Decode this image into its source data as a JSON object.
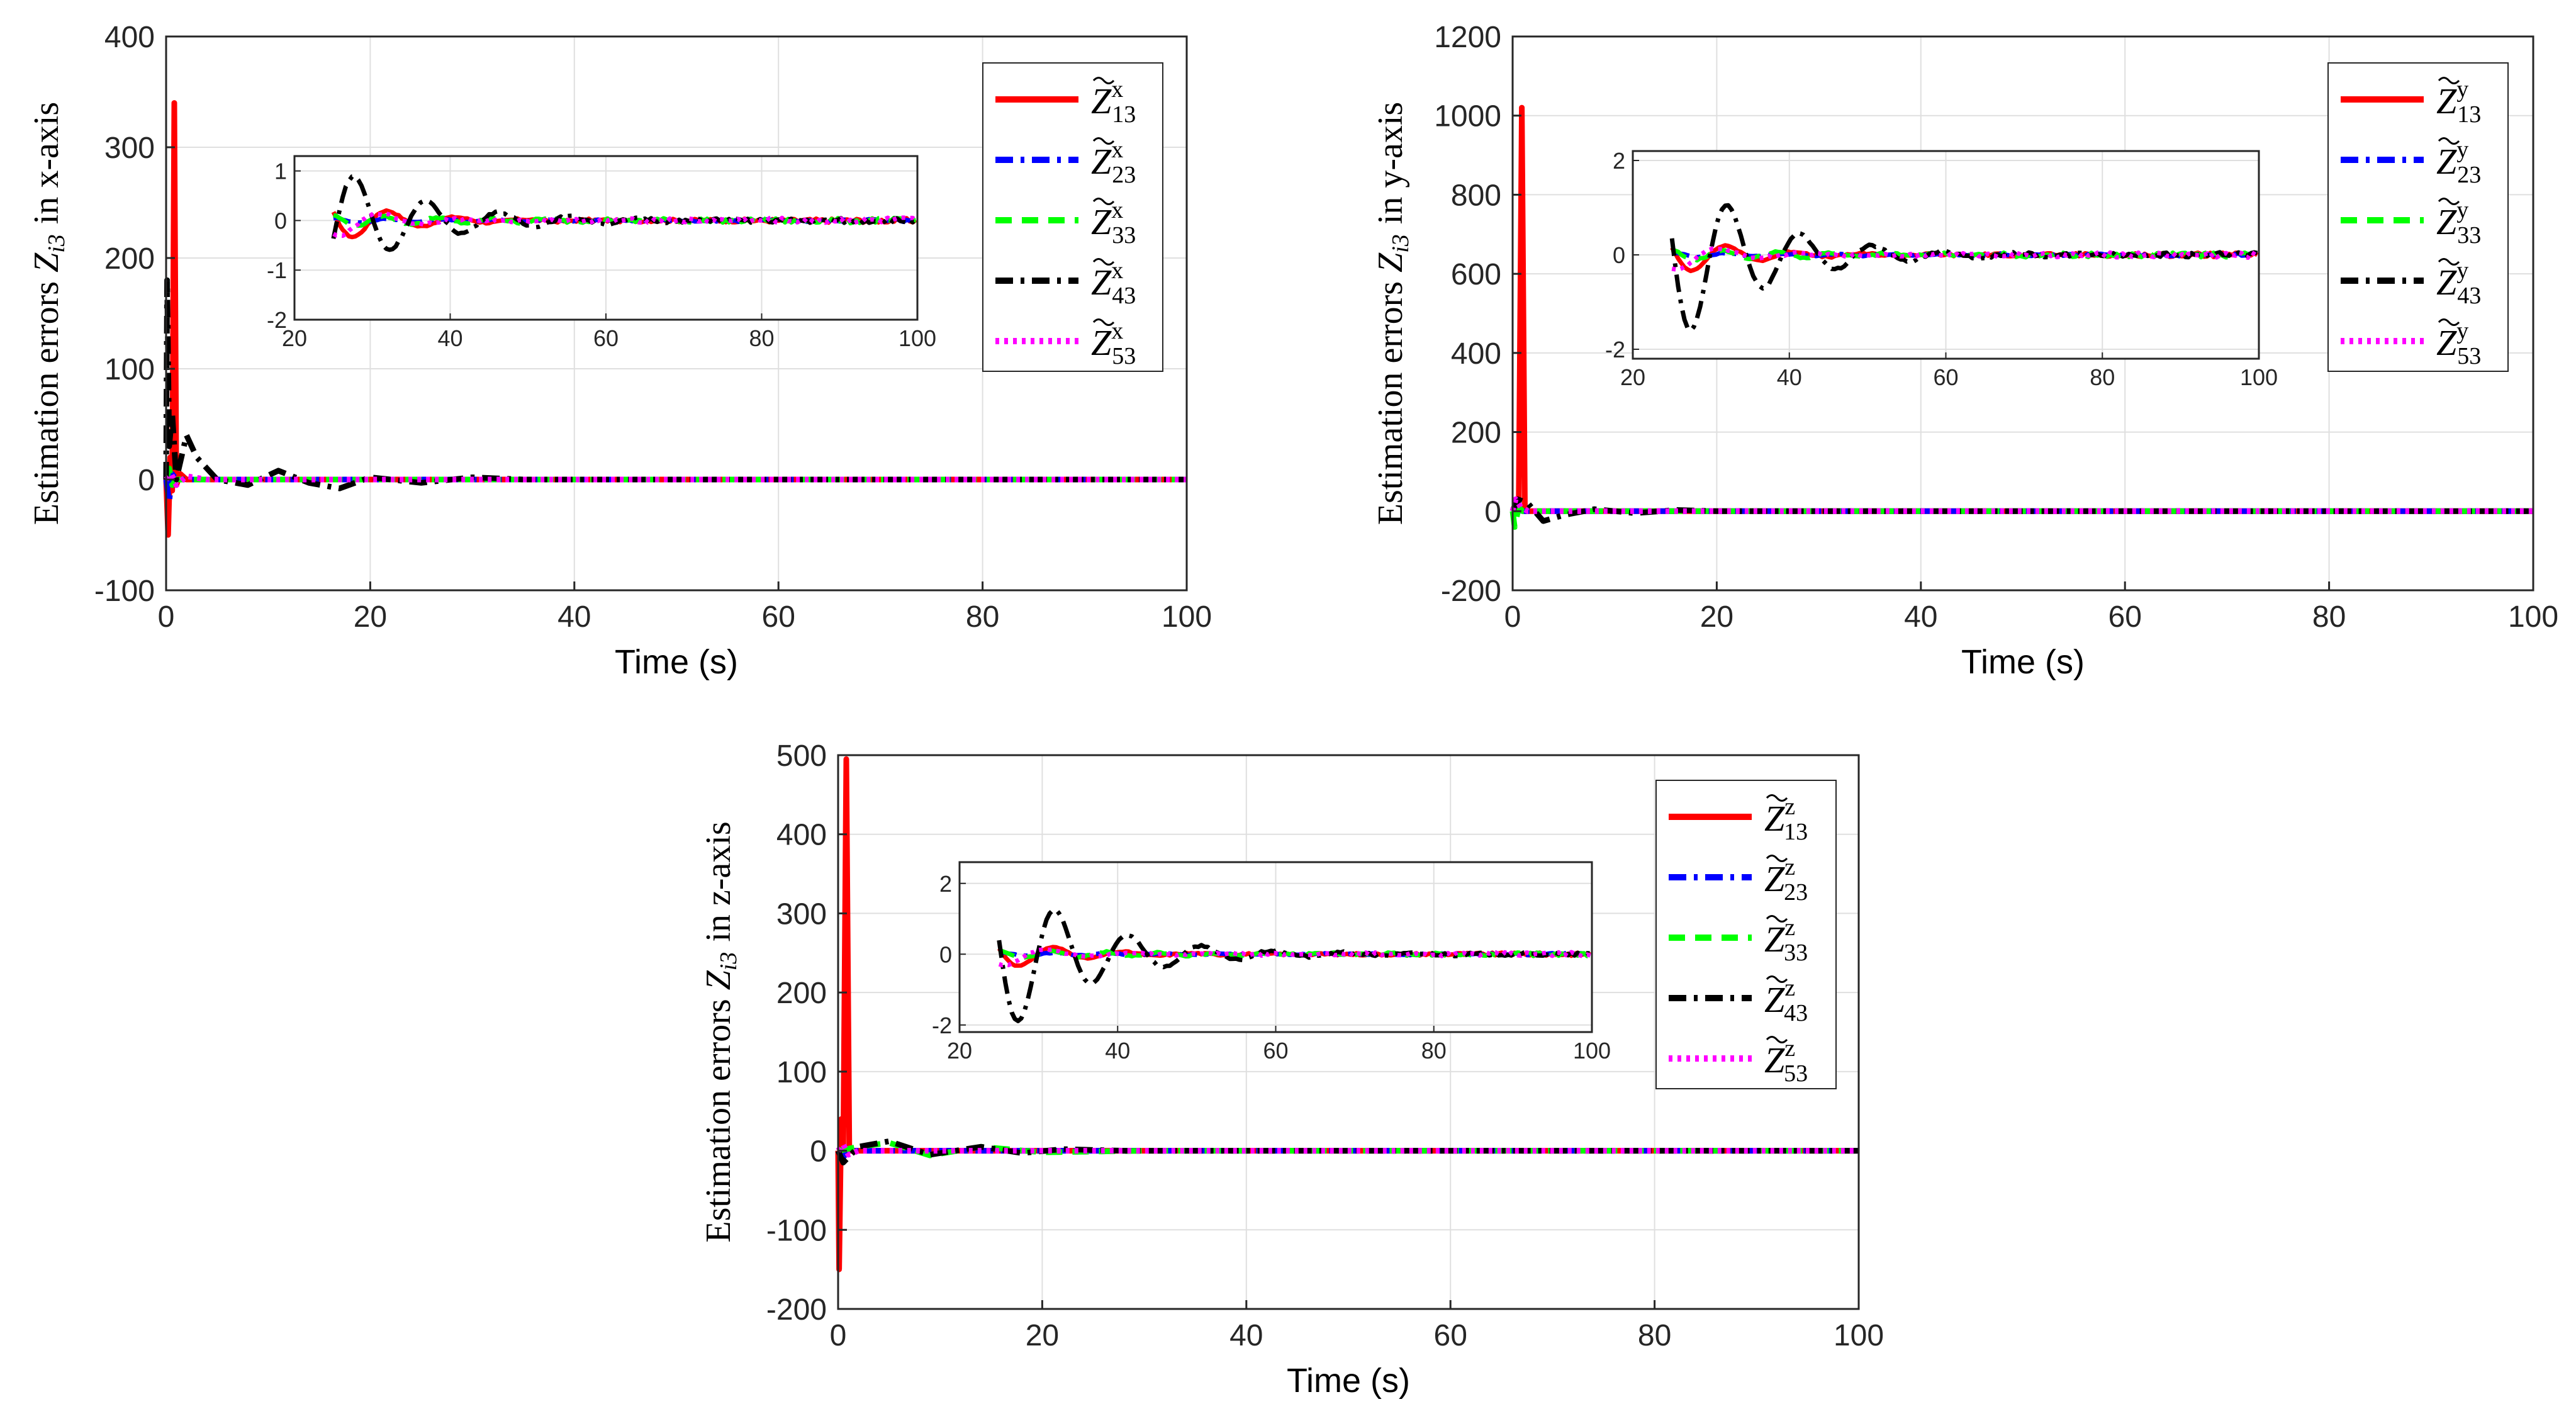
{
  "chart_data": [
    {
      "type": "line",
      "id": "x",
      "xlabel": "Time (s)",
      "ylabel_prefix": "Estimation errors",
      "ylabel_suffix": "in x-axis",
      "xlim": [
        0,
        100
      ],
      "ylim": [
        -100,
        400
      ],
      "xticks": [
        "0",
        "20",
        "40",
        "60",
        "80",
        "100"
      ],
      "yticks": [
        "-100",
        "0",
        "100",
        "200",
        "300",
        "400"
      ],
      "yticks_values": [
        -100,
        0,
        100,
        200,
        300,
        400
      ],
      "grid": true,
      "legend_position": "top-right",
      "series": [
        {
          "name": "13",
          "color": "#ff0000",
          "style": "solid",
          "values": [
            [
              0,
              0
            ],
            [
              0.2,
              -50
            ],
            [
              0.4,
              20
            ],
            [
              0.6,
              -10
            ],
            [
              0.8,
              340
            ],
            [
              1.0,
              -5
            ],
            [
              1.4,
              5
            ],
            [
              2,
              0
            ],
            [
              100,
              0
            ]
          ]
        },
        {
          "name": "23",
          "color": "#0000ff",
          "style": "dashdot",
          "values": [
            [
              0,
              0
            ],
            [
              0.3,
              -20
            ],
            [
              0.6,
              5
            ],
            [
              1,
              0
            ],
            [
              100,
              0
            ]
          ]
        },
        {
          "name": "33",
          "color": "#00ff00",
          "style": "dashed",
          "values": [
            [
              0,
              0
            ],
            [
              0.3,
              10
            ],
            [
              0.6,
              -5
            ],
            [
              1,
              0
            ],
            [
              100,
              0
            ]
          ]
        },
        {
          "name": "43",
          "color": "#000000",
          "style": "dashdot",
          "values": [
            [
              0,
              0
            ],
            [
              0.1,
              180
            ],
            [
              0.3,
              30
            ],
            [
              0.6,
              60
            ],
            [
              1,
              0
            ],
            [
              2,
              40
            ],
            [
              3,
              20
            ],
            [
              5,
              0
            ],
            [
              8,
              -5
            ],
            [
              11,
              8
            ],
            [
              14,
              -3
            ],
            [
              17,
              -8
            ],
            [
              20,
              2
            ],
            [
              25,
              -3
            ],
            [
              30,
              2
            ],
            [
              35,
              0
            ],
            [
              100,
              0
            ]
          ]
        },
        {
          "name": "53",
          "color": "#ff00ff",
          "style": "dotted",
          "values": [
            [
              0,
              0
            ],
            [
              0.5,
              5
            ],
            [
              1,
              -5
            ],
            [
              2,
              3
            ],
            [
              4,
              0
            ],
            [
              100,
              0
            ]
          ]
        }
      ],
      "inset": {
        "xlim": [
          20,
          100
        ],
        "ylim": [
          -2,
          1.3
        ],
        "xticks": [
          "20",
          "40",
          "60",
          "80",
          "100"
        ],
        "yticks": [
          "-2",
          "-1",
          "0",
          "1"
        ],
        "yticks_values": [
          -2,
          -1,
          0,
          1
        ]
      }
    },
    {
      "type": "line",
      "id": "y",
      "xlabel": "Time (s)",
      "ylabel_prefix": "Estimation errors",
      "ylabel_suffix": "in y-axis",
      "xlim": [
        0,
        100
      ],
      "ylim": [
        -200,
        1200
      ],
      "xticks": [
        "0",
        "20",
        "40",
        "60",
        "80",
        "100"
      ],
      "yticks": [
        "-200",
        "0",
        "200",
        "400",
        "600",
        "800",
        "1000",
        "1200"
      ],
      "yticks_values": [
        -200,
        0,
        200,
        400,
        600,
        800,
        1000,
        1200
      ],
      "grid": true,
      "legend_position": "top-right",
      "series": [
        {
          "name": "13",
          "color": "#ff0000",
          "style": "solid",
          "values": [
            [
              0,
              0
            ],
            [
              0.3,
              20
            ],
            [
              0.6,
              10
            ],
            [
              0.9,
              1020
            ],
            [
              1.2,
              0
            ],
            [
              100,
              0
            ]
          ]
        },
        {
          "name": "23",
          "color": "#0000ff",
          "style": "dashdot",
          "values": [
            [
              0,
              0
            ],
            [
              0.4,
              5
            ],
            [
              1,
              0
            ],
            [
              100,
              0
            ]
          ]
        },
        {
          "name": "33",
          "color": "#00ff00",
          "style": "dashed",
          "values": [
            [
              0,
              0
            ],
            [
              0.2,
              -40
            ],
            [
              0.6,
              10
            ],
            [
              1,
              0
            ],
            [
              100,
              0
            ]
          ]
        },
        {
          "name": "43",
          "color": "#000000",
          "style": "dashdot",
          "values": [
            [
              0,
              0
            ],
            [
              0.5,
              30
            ],
            [
              1.5,
              20
            ],
            [
              3,
              -25
            ],
            [
              5,
              -10
            ],
            [
              8,
              5
            ],
            [
              12,
              -5
            ],
            [
              16,
              3
            ],
            [
              20,
              0
            ],
            [
              100,
              0
            ]
          ]
        },
        {
          "name": "53",
          "color": "#ff00ff",
          "style": "dotted",
          "values": [
            [
              0,
              0
            ],
            [
              0.3,
              30
            ],
            [
              0.8,
              10
            ],
            [
              1.5,
              0
            ],
            [
              100,
              0
            ]
          ]
        }
      ],
      "inset": {
        "xlim": [
          20,
          100
        ],
        "ylim": [
          -2.2,
          2.2
        ],
        "xticks": [
          "20",
          "40",
          "60",
          "80",
          "100"
        ],
        "yticks": [
          "-2",
          "0",
          "2"
        ],
        "yticks_values": [
          -2,
          0,
          2
        ]
      }
    },
    {
      "type": "line",
      "id": "z",
      "xlabel": "Time (s)",
      "ylabel_prefix": "Estimation errors",
      "ylabel_suffix": "in z-axis",
      "xlim": [
        0,
        100
      ],
      "ylim": [
        -200,
        500
      ],
      "xticks": [
        "0",
        "20",
        "40",
        "60",
        "80",
        "100"
      ],
      "yticks": [
        "-200",
        "-100",
        "0",
        "100",
        "200",
        "300",
        "400",
        "500"
      ],
      "yticks_values": [
        -200,
        -100,
        0,
        100,
        200,
        300,
        400,
        500
      ],
      "grid": true,
      "legend_position": "top-right",
      "series": [
        {
          "name": "13",
          "color": "#ff0000",
          "style": "solid",
          "values": [
            [
              0,
              0
            ],
            [
              0.1,
              -150
            ],
            [
              0.3,
              40
            ],
            [
              0.5,
              -10
            ],
            [
              0.8,
              495
            ],
            [
              1.1,
              0
            ],
            [
              100,
              0
            ]
          ]
        },
        {
          "name": "23",
          "color": "#0000ff",
          "style": "dashdot",
          "values": [
            [
              0,
              0
            ],
            [
              0.4,
              -10
            ],
            [
              1,
              0
            ],
            [
              100,
              0
            ]
          ]
        },
        {
          "name": "33",
          "color": "#00ff00",
          "style": "dashed",
          "values": [
            [
              0,
              0
            ],
            [
              2,
              5
            ],
            [
              5,
              10
            ],
            [
              9,
              -6
            ],
            [
              14,
              5
            ],
            [
              20,
              -2
            ],
            [
              30,
              0
            ],
            [
              100,
              0
            ]
          ]
        },
        {
          "name": "43",
          "color": "#000000",
          "style": "dashdot",
          "values": [
            [
              0,
              0
            ],
            [
              0.5,
              -15
            ],
            [
              2,
              5
            ],
            [
              5,
              12
            ],
            [
              9,
              -5
            ],
            [
              14,
              5
            ],
            [
              18,
              -3
            ],
            [
              22,
              2
            ],
            [
              28,
              0
            ],
            [
              100,
              0
            ]
          ]
        },
        {
          "name": "53",
          "color": "#ff00ff",
          "style": "dotted",
          "values": [
            [
              0,
              0
            ],
            [
              0.5,
              8
            ],
            [
              1,
              -5
            ],
            [
              2,
              0
            ],
            [
              100,
              0
            ]
          ]
        }
      ],
      "inset": {
        "xlim": [
          20,
          100
        ],
        "ylim": [
          -2.2,
          2.6
        ],
        "xticks": [
          "20",
          "40",
          "60",
          "80",
          "100"
        ],
        "yticks": [
          "-2",
          "0",
          "2"
        ],
        "yticks_values": [
          -2,
          0,
          2
        ]
      }
    }
  ],
  "legend_symbol": "Z",
  "ylabel_symbol_sub": "i3"
}
